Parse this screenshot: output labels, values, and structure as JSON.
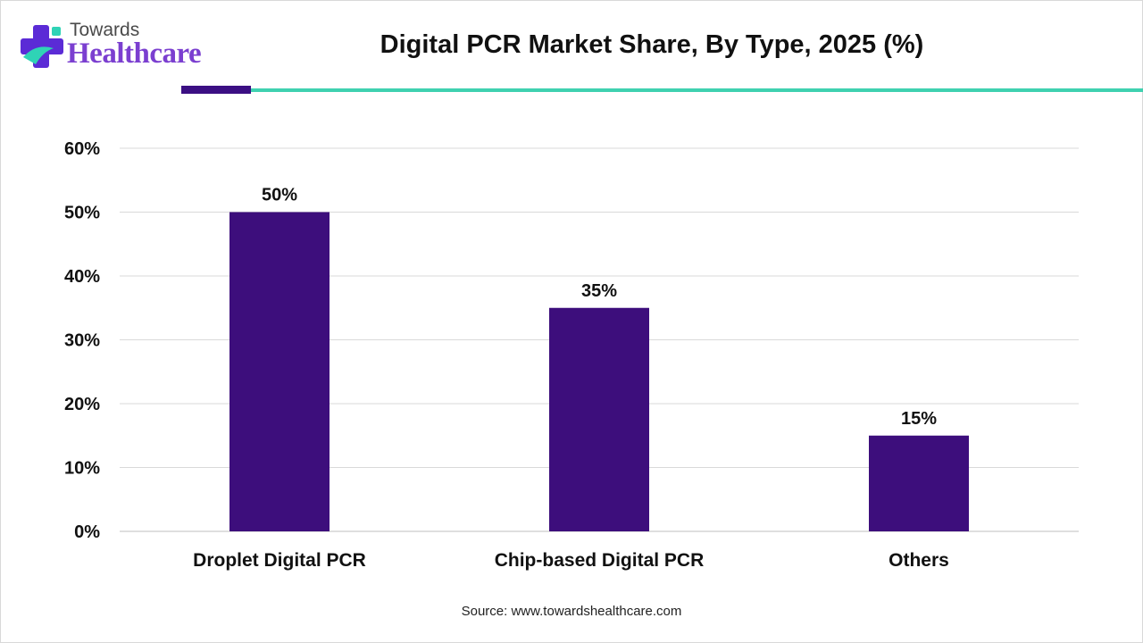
{
  "brand": {
    "top_text": "Towards",
    "main_text": "Healthcare",
    "colors": {
      "cross_primary": "#5b2bd6",
      "cross_accent": "#2fd3b6",
      "main_text": "#7b3fd0"
    },
    "icon": "medical-cross-icon"
  },
  "header": {
    "title": "Digital PCR Market Share, By Type, 2025 (%)",
    "accent_colors": [
      "#3b0f83",
      "#3fd1b0"
    ]
  },
  "chart_data": {
    "type": "bar",
    "title": "Digital PCR Market Share, By Type, 2025 (%)",
    "categories": [
      "Droplet Digital PCR",
      "Chip-based Digital PCR",
      "Others"
    ],
    "series": [
      {
        "values": [
          50,
          35,
          15
        ]
      }
    ],
    "data_labels": [
      "50%",
      "35%",
      "15%"
    ],
    "xlabel": "",
    "ylabel": "",
    "ylim": [
      0,
      60
    ],
    "yticks": [
      0,
      10,
      20,
      30,
      40,
      50,
      60
    ],
    "ytick_labels": [
      "0%",
      "10%",
      "20%",
      "30%",
      "40%",
      "50%",
      "60%"
    ],
    "grid": true,
    "legend": "none",
    "bar_color": "#3d0e7c"
  },
  "footer": {
    "source": "Source: www.towardshealthcare.com"
  }
}
